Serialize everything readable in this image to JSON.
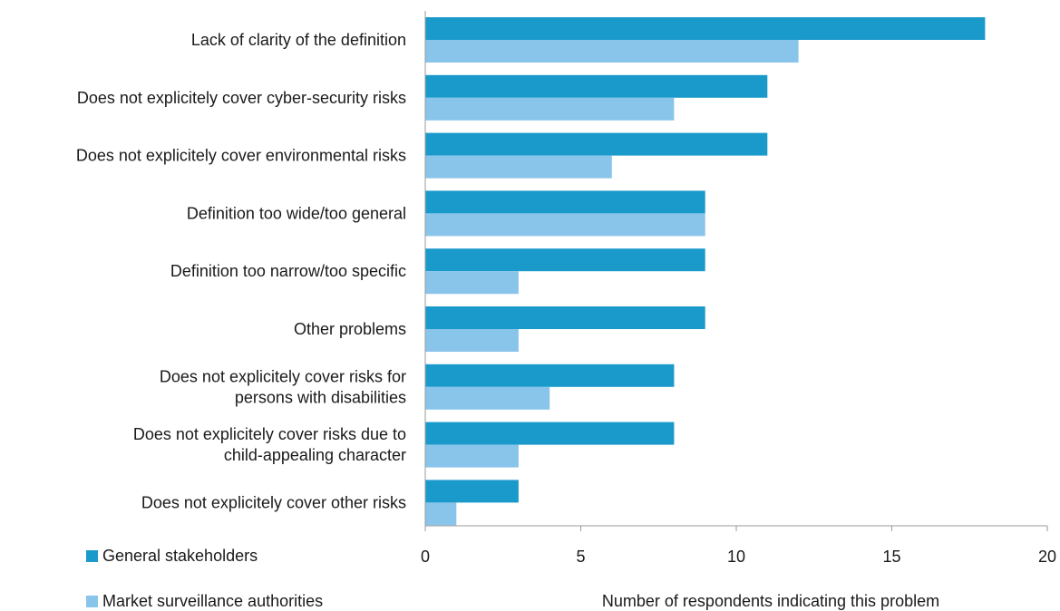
{
  "chart_data": {
    "type": "bar",
    "orientation": "horizontal",
    "categories": [
      "Lack of clarity of the definition",
      "Does not explicitely cover cyber-security risks",
      "Does not explicitely cover environmental risks",
      "Definition too wide/too general",
      "Definition too narrow/too specific",
      "Other problems",
      "Does not explicitely cover risks for persons with disabilities",
      "Does not  explicitely cover risks due to child-appealing character",
      "Does not explicitely cover other risks"
    ],
    "category_lines": [
      [
        "Lack of clarity of the definition"
      ],
      [
        "Does not explicitely cover cyber-security risks"
      ],
      [
        "Does not explicitely cover environmental risks"
      ],
      [
        "Definition too wide/too general"
      ],
      [
        "Definition too narrow/too specific"
      ],
      [
        "Other problems"
      ],
      [
        "Does not explicitely cover risks for",
        "persons with disabilities"
      ],
      [
        "Does not  explicitely cover risks due to",
        "child-appealing character"
      ],
      [
        "Does not explicitely cover other risks"
      ]
    ],
    "series": [
      {
        "name": "General stakeholders",
        "color": "#1a9acb",
        "values": [
          18,
          11,
          11,
          9,
          9,
          9,
          8,
          8,
          3
        ]
      },
      {
        "name": "Market surveillance authorities",
        "color": "#89c4ea",
        "values": [
          12,
          8,
          6,
          9,
          3,
          3,
          4,
          3,
          1
        ]
      }
    ],
    "xlabel": "Number of respondents indicating this problem",
    "xlim": [
      0,
      20
    ],
    "xticks": [
      0,
      5,
      10,
      15,
      20
    ],
    "grid": false,
    "legend_position": "bottom-left"
  }
}
